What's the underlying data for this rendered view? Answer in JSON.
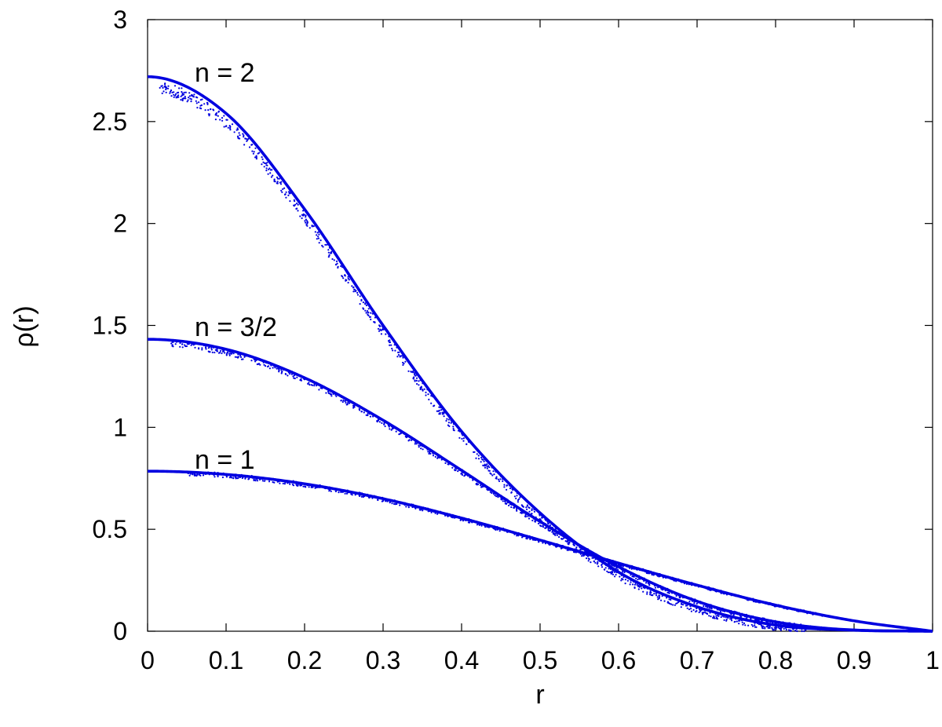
{
  "chart_data": {
    "type": "line",
    "title": "",
    "xlabel": "r",
    "ylabel": "ρ(r)",
    "xlim": [
      0,
      1
    ],
    "ylim": [
      0,
      3
    ],
    "xticks": [
      "0",
      "0.1",
      "0.2",
      "0.3",
      "0.4",
      "0.5",
      "0.6",
      "0.7",
      "0.8",
      "0.9",
      "1"
    ],
    "yticks": [
      "0",
      "0.5",
      "1",
      "1.5",
      "2",
      "2.5",
      "3"
    ],
    "grid": false,
    "legend": "none",
    "color": "#0000e0",
    "series": [
      {
        "name": "n = 1",
        "x": [
          0,
          0.1,
          0.2,
          0.3,
          0.4,
          0.5,
          0.6,
          0.7,
          0.8,
          0.9,
          1.0
        ],
        "y": [
          0.785,
          0.769,
          0.723,
          0.65,
          0.555,
          0.447,
          0.334,
          0.226,
          0.128,
          0.051,
          0.0
        ]
      },
      {
        "name": "n = 3/2",
        "x": [
          0,
          0.1,
          0.2,
          0.3,
          0.4,
          0.5,
          0.6,
          0.7,
          0.8,
          0.9,
          1.0
        ],
        "y": [
          1.432,
          1.383,
          1.243,
          1.035,
          0.789,
          0.538,
          0.316,
          0.147,
          0.046,
          0.006,
          0.0
        ]
      },
      {
        "name": "n = 2",
        "x": [
          0,
          0.1,
          0.2,
          0.3,
          0.4,
          0.5,
          0.6,
          0.7,
          0.8,
          0.9,
          1.0
        ],
        "y": [
          2.72,
          2.54,
          2.07,
          1.5,
          0.98,
          0.58,
          0.29,
          0.12,
          0.03,
          0.005,
          0.0
        ]
      }
    ],
    "annotations": [
      "n = 2",
      "n = 3/2",
      "n = 1"
    ]
  }
}
